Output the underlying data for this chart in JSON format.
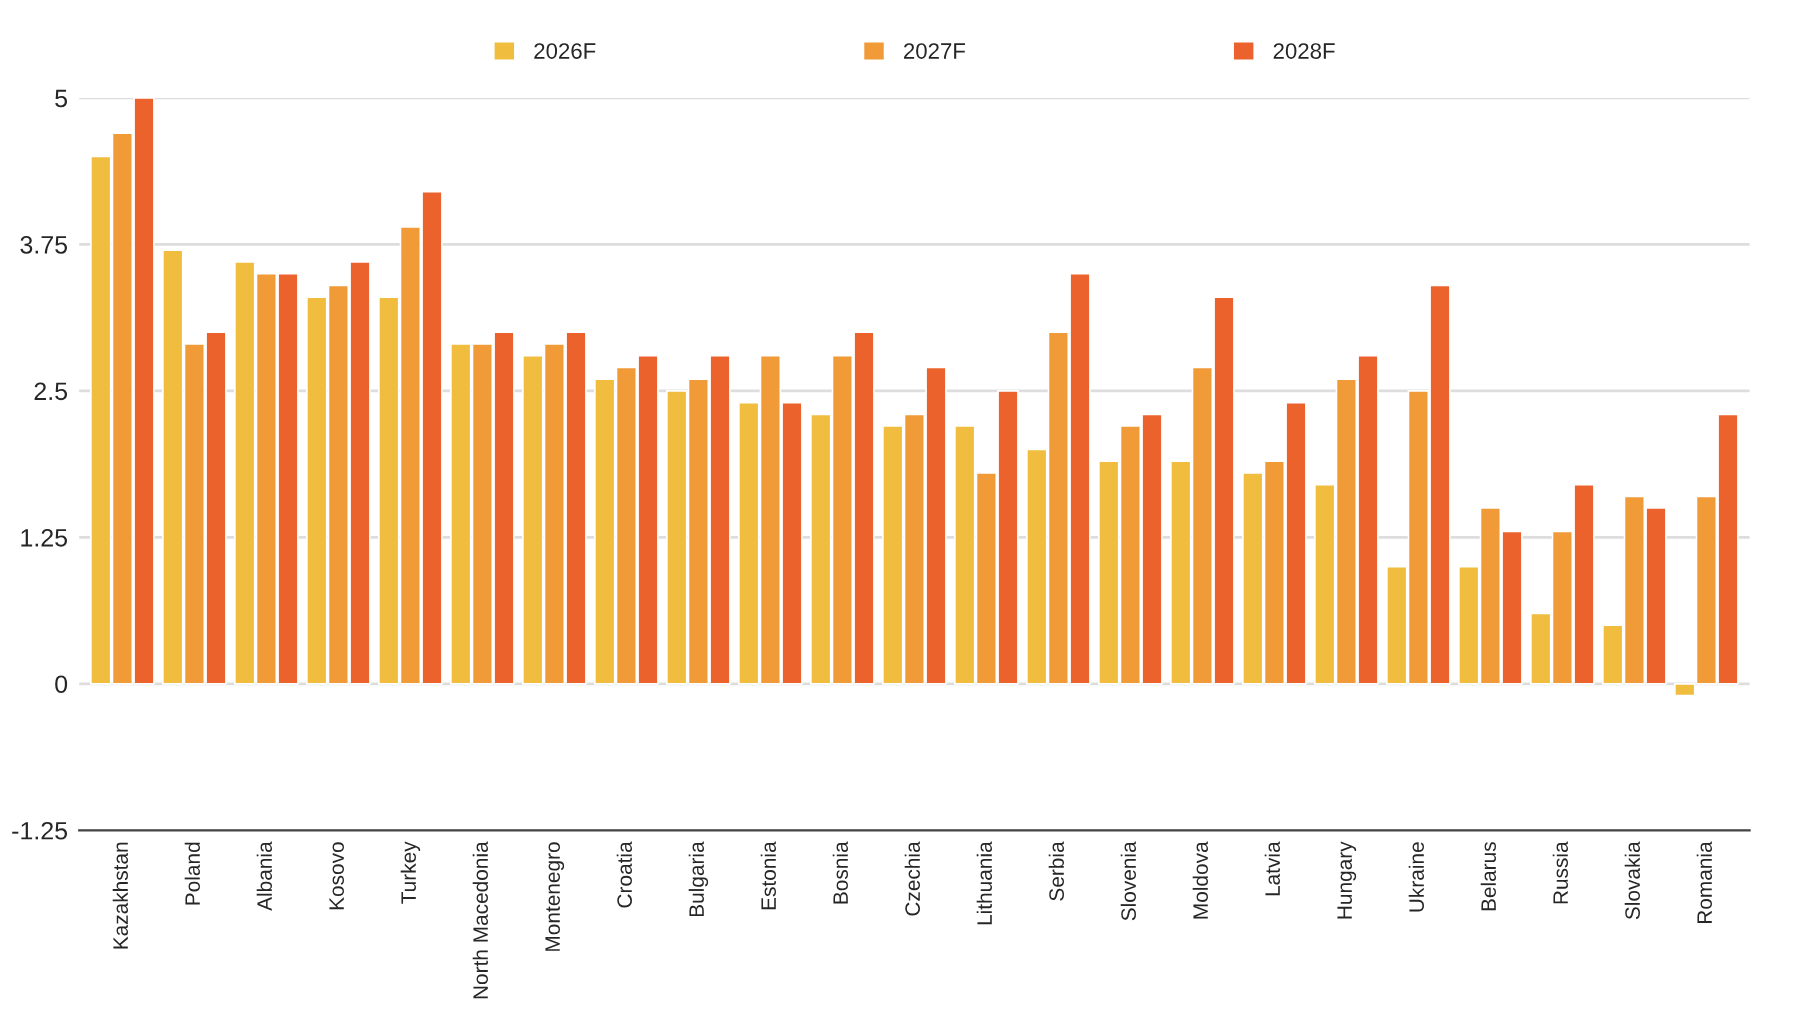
{
  "chart_data": {
    "type": "bar",
    "categories": [
      "Kazakhstan",
      "Poland",
      "Albania",
      "Kosovo",
      "Turkey",
      "North Macedonia",
      "Montenegro",
      "Croatia",
      "Bulgaria",
      "Estonia",
      "Bosnia",
      "Czechia",
      "Lithuania",
      "Serbia",
      "Slovenia",
      "Moldova",
      "Latvia",
      "Hungary",
      "Ukraine",
      "Belarus",
      "Russia",
      "Slovakia",
      "Romania"
    ],
    "series": [
      {
        "name": "2026F",
        "color": "#f0bd3f",
        "values": [
          4.5,
          3.7,
          3.6,
          3.3,
          3.3,
          2.9,
          2.8,
          2.6,
          2.5,
          2.4,
          2.3,
          2.2,
          2.2,
          2.0,
          1.9,
          1.9,
          1.8,
          1.7,
          1.0,
          1.0,
          0.6,
          0.5,
          -0.1
        ]
      },
      {
        "name": "2027F",
        "color": "#f09a38",
        "values": [
          4.7,
          2.9,
          3.5,
          3.4,
          3.9,
          2.9,
          2.9,
          2.7,
          2.6,
          2.8,
          2.8,
          2.3,
          1.8,
          3.0,
          2.2,
          2.7,
          1.9,
          2.6,
          2.5,
          1.5,
          1.3,
          1.6,
          1.6
        ]
      },
      {
        "name": "2028F",
        "color": "#ec622c",
        "values": [
          5.0,
          3.0,
          3.5,
          3.6,
          4.2,
          3.0,
          3.0,
          2.8,
          2.8,
          2.4,
          3.0,
          2.7,
          2.5,
          3.5,
          2.3,
          3.3,
          2.4,
          2.8,
          3.4,
          1.3,
          1.7,
          1.5,
          2.3
        ]
      }
    ],
    "ylim": [
      -1.25,
      5
    ],
    "yticks": [
      -1.25,
      0,
      1.25,
      2.5,
      3.75,
      5
    ],
    "grid": "y",
    "legend": "top"
  }
}
